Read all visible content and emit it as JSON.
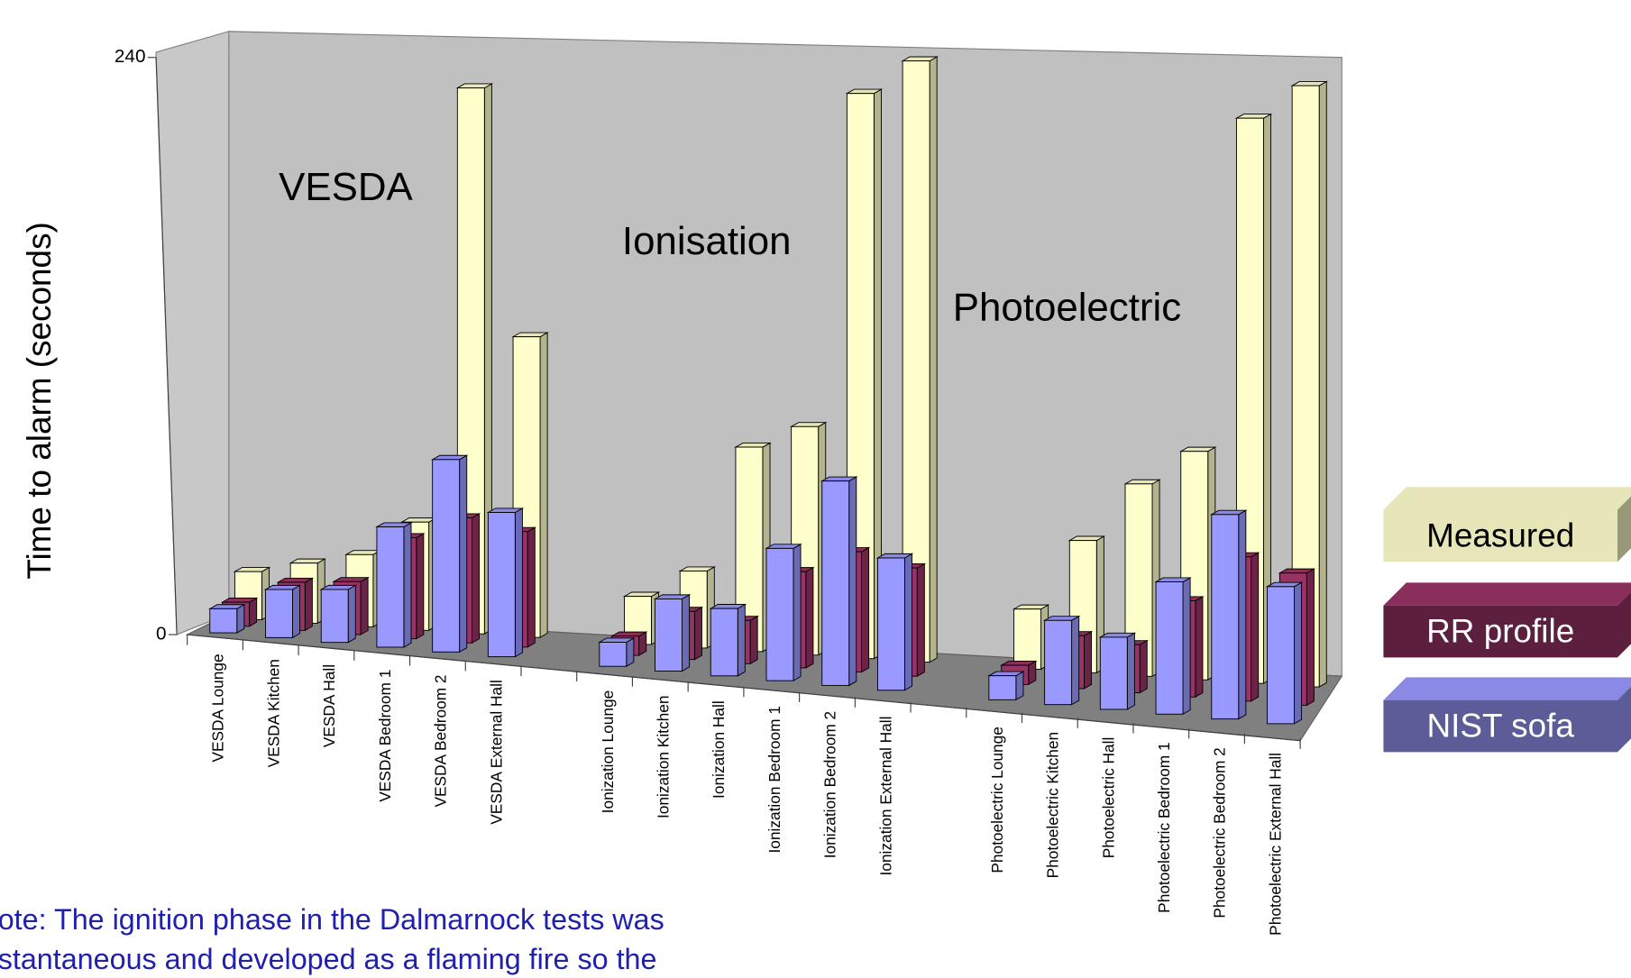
{
  "chart_data": {
    "type": "bar3d",
    "y_label": "Time to alarm (seconds)",
    "annotations": [
      "VESDA",
      "Ionisation",
      "Photoelectric"
    ],
    "note": [
      "ote: The ignition phase in the Dalmarnock tests was",
      "stantaneous and developed as a flaming fire so the"
    ],
    "categories": [
      "VESDA Lounge",
      "VESDA Kitchen",
      "VESDA Hall",
      "VESDA Bedroom 1",
      "VESDA Bedroom 2",
      "VESDA External Hall",
      null,
      "Ionization Lounge",
      "Ionization Kitchen",
      "Ionization Hall",
      "Ionization Bedroom 1",
      "Ionization Bedroom 2",
      "Ionization External Hall",
      null,
      "Photoelectric Lounge",
      "Photoelectric Kitchen",
      "Photoelectric Hall",
      "Photoelectric Bedroom 1",
      "Photoelectric Bedroom 2",
      "Photoelectric External Hall"
    ],
    "series": [
      {
        "name": "Measured",
        "color": "#ffffcc",
        "values": [
          20,
          25,
          30,
          45,
          227,
          125,
          null,
          20,
          32,
          85,
          95,
          235,
          250,
          null,
          25,
          55,
          80,
          95,
          235,
          250
        ]
      },
      {
        "name": "RR profile",
        "color": "#993366",
        "values": [
          10,
          20,
          22,
          42,
          52,
          48,
          null,
          8,
          20,
          18,
          40,
          50,
          45,
          null,
          8,
          22,
          20,
          40,
          60,
          55
        ]
      },
      {
        "name": "NIST sofa",
        "color": "#9999ff",
        "values": [
          10,
          20,
          22,
          50,
          80,
          60,
          null,
          10,
          30,
          28,
          55,
          85,
          55,
          null,
          10,
          35,
          30,
          55,
          85,
          57
        ]
      }
    ],
    "ylim": [
      0,
      240
    ],
    "yticks": [
      0,
      240
    ]
  }
}
